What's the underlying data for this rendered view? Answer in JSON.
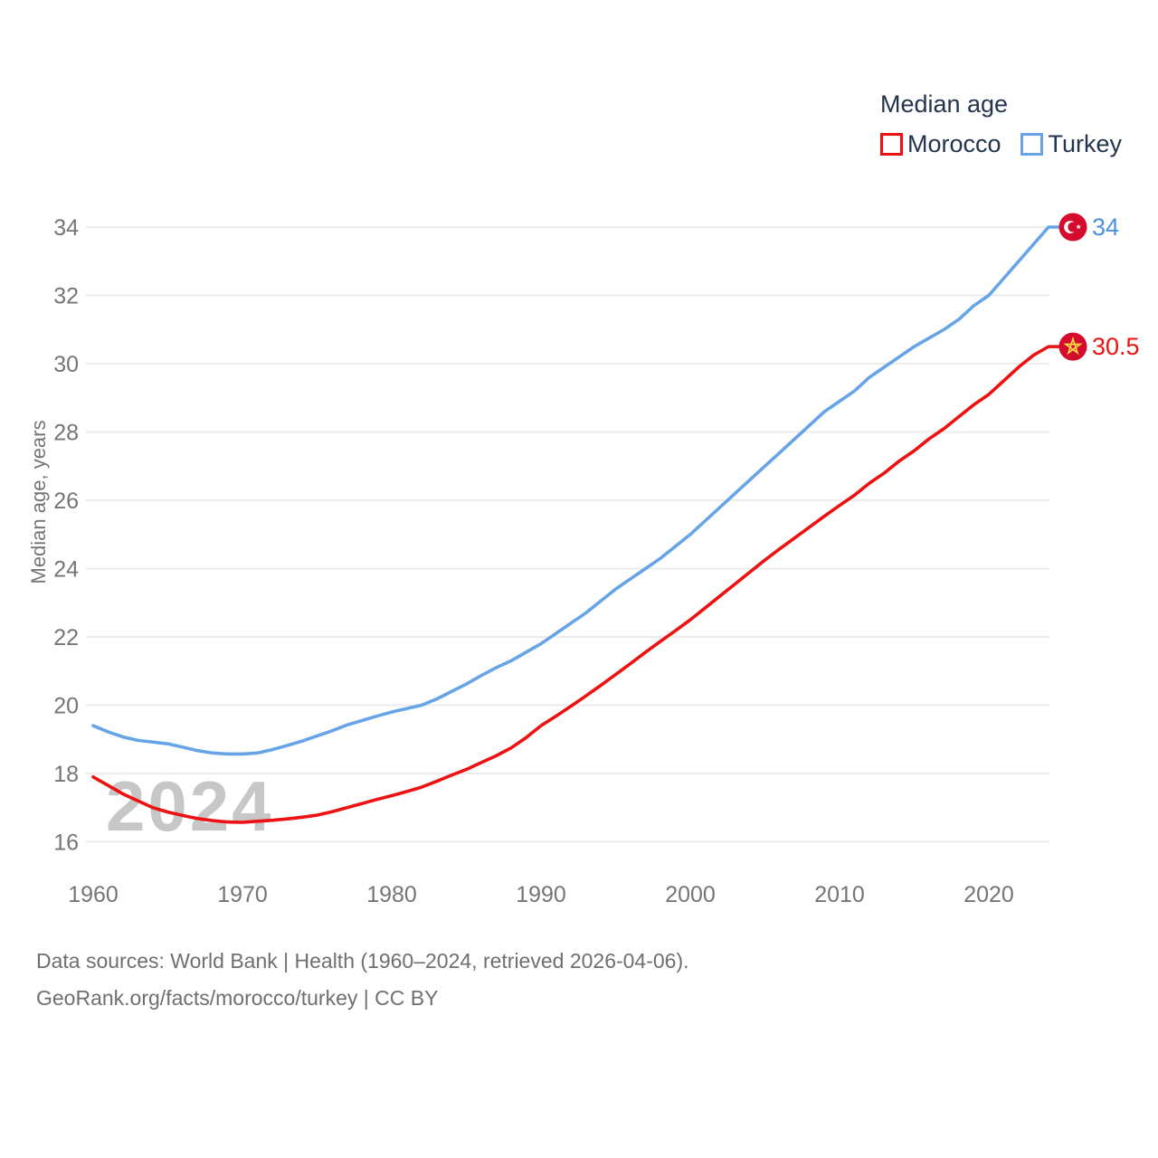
{
  "watermark": "2024",
  "legend": {
    "title": "Median age",
    "items": [
      {
        "label": "Morocco",
        "color": "#ee1111"
      },
      {
        "label": "Turkey",
        "color": "#67a4e7"
      }
    ]
  },
  "y_axis": {
    "title": "Median age, years"
  },
  "end_labels": {
    "turkey": {
      "text": "34",
      "color": "#4a92db"
    },
    "morocco": {
      "text": "30.5",
      "color": "#ee1111"
    }
  },
  "icons": {
    "flag_circle_red": "#d50b2d",
    "flag_star_gold": "#ffda44",
    "flag_crescent_white": "#ffffff"
  },
  "colors": {
    "gridline": "#ececec",
    "tick_text": "#757575"
  },
  "footer": {
    "line1": "Data sources: World Bank | Health (1960–2024, retrieved 2026-04-06).",
    "line2": "GeoRank.org/facts/morocco/turkey | CC BY"
  },
  "chart_data": {
    "type": "line",
    "title": "Median age",
    "ylabel": "Median age, years",
    "xlim": [
      1960,
      2024
    ],
    "ylim": [
      16,
      34
    ],
    "xticks": [
      1960,
      1970,
      1980,
      1990,
      2000,
      2010,
      2020
    ],
    "yticks": [
      16,
      18,
      20,
      22,
      24,
      26,
      28,
      30,
      32,
      34
    ],
    "grid": "horizontal",
    "legend_position": "top-right",
    "x": [
      1960,
      1961,
      1962,
      1963,
      1964,
      1965,
      1966,
      1967,
      1968,
      1969,
      1970,
      1971,
      1972,
      1973,
      1974,
      1975,
      1976,
      1977,
      1978,
      1979,
      1980,
      1981,
      1982,
      1983,
      1984,
      1985,
      1986,
      1987,
      1988,
      1989,
      1990,
      1991,
      1992,
      1993,
      1994,
      1995,
      1996,
      1997,
      1998,
      1999,
      2000,
      2001,
      2002,
      2003,
      2004,
      2005,
      2006,
      2007,
      2008,
      2009,
      2010,
      2011,
      2012,
      2013,
      2014,
      2015,
      2016,
      2017,
      2018,
      2019,
      2020,
      2021,
      2022,
      2023,
      2024
    ],
    "series": [
      {
        "name": "Morocco",
        "color": "#ee1111",
        "values": [
          17.9,
          17.65,
          17.4,
          17.2,
          17.0,
          16.87,
          16.77,
          16.68,
          16.62,
          16.58,
          16.57,
          16.6,
          16.63,
          16.67,
          16.72,
          16.78,
          16.88,
          17.0,
          17.12,
          17.24,
          17.35,
          17.47,
          17.6,
          17.77,
          17.95,
          18.12,
          18.32,
          18.52,
          18.75,
          19.05,
          19.4,
          19.68,
          19.97,
          20.27,
          20.58,
          20.9,
          21.22,
          21.55,
          21.87,
          22.18,
          22.5,
          22.85,
          23.2,
          23.55,
          23.9,
          24.25,
          24.58,
          24.9,
          25.22,
          25.54,
          25.85,
          26.15,
          26.5,
          26.8,
          27.15,
          27.45,
          27.8,
          28.1,
          28.45,
          28.8,
          29.1,
          29.5,
          29.9,
          30.25,
          30.5
        ]
      },
      {
        "name": "Turkey",
        "color": "#67a4e7",
        "values": [
          19.4,
          19.22,
          19.07,
          18.97,
          18.92,
          18.87,
          18.77,
          18.67,
          18.6,
          18.57,
          18.57,
          18.6,
          18.7,
          18.82,
          18.95,
          19.1,
          19.25,
          19.42,
          19.55,
          19.68,
          19.8,
          19.9,
          20.0,
          20.18,
          20.4,
          20.62,
          20.87,
          21.1,
          21.3,
          21.55,
          21.8,
          22.1,
          22.4,
          22.7,
          23.05,
          23.4,
          23.7,
          24.0,
          24.3,
          24.65,
          25.0,
          25.4,
          25.8,
          26.2,
          26.6,
          27.0,
          27.4,
          27.8,
          28.2,
          28.6,
          28.9,
          29.2,
          29.6,
          29.9,
          30.2,
          30.5,
          30.75,
          31.0,
          31.3,
          31.7,
          32.0,
          32.5,
          33.0,
          33.5,
          34.0
        ]
      }
    ]
  }
}
